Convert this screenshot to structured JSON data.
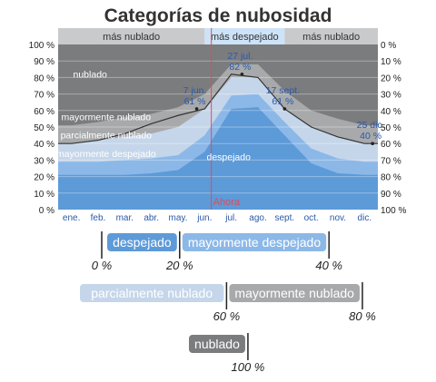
{
  "chart_data": {
    "type": "area",
    "title": "Categorías de nubosidad",
    "x_tick_labels": [
      "ene.",
      "feb.",
      "mar.",
      "abr.",
      "may.",
      "jun.",
      "jul.",
      "ago.",
      "sept.",
      "oct.",
      "nov.",
      "dic."
    ],
    "y_left_ticks": [
      "0 %",
      "10 %",
      "20 %",
      "30 %",
      "40 %",
      "50 %",
      "60 %",
      "70 %",
      "80 %",
      "90 %",
      "100 %"
    ],
    "y_right_ticks": [
      "100 %",
      "90 %",
      "80 %",
      "70 %",
      "60 %",
      "50 %",
      "40 %",
      "30 %",
      "20 %",
      "10 %",
      "0 %"
    ],
    "ylim": [
      0,
      100
    ],
    "top_bands": [
      {
        "label": "más nublado",
        "start": 0,
        "end": 5
      },
      {
        "label": "más despejado",
        "start": 5,
        "end": 8
      },
      {
        "label": "más nublado",
        "start": 8,
        "end": 11
      }
    ],
    "month_positions": [
      0,
      1,
      2,
      3,
      4,
      5,
      6,
      7,
      8,
      9,
      10,
      11
    ],
    "series": [
      {
        "name": "despejado",
        "color": "#5d9ad8",
        "values": [
          21,
          21,
          21,
          22,
          24,
          35,
          61,
          62,
          45,
          28,
          22,
          21
        ]
      },
      {
        "name": "mayormente despejado",
        "color": "#8cb8e8",
        "values": [
          29,
          29,
          30,
          31,
          33,
          45,
          69,
          70,
          53,
          37,
          31,
          29
        ]
      },
      {
        "name": "parcialmente nublado",
        "color": "#c5d6ea",
        "values": [
          40,
          42,
          44,
          46,
          50,
          61,
          80,
          80,
          61,
          50,
          44,
          40
        ]
      },
      {
        "name": "mayormente nublado",
        "color": "#a8a9ab",
        "values": [
          51,
          53,
          56,
          58,
          62,
          70,
          88,
          88,
          72,
          60,
          55,
          51
        ]
      },
      {
        "name": "nublado",
        "color": "#7b7c7e",
        "values": [
          100,
          100,
          100,
          100,
          100,
          100,
          100,
          100,
          100,
          100,
          100,
          100
        ]
      }
    ],
    "clear_percentage_line": [
      40,
      42,
      46,
      52,
      57,
      61,
      82,
      80,
      61,
      50,
      44,
      40
    ],
    "area_labels": [
      {
        "text": "nublado",
        "x": 1.2,
        "y": 80
      },
      {
        "text": "mayormente nublado",
        "x": 1.8,
        "y": 54
      },
      {
        "text": "parcialmente nublado",
        "x": 1.8,
        "y": 43
      },
      {
        "text": "mayormente despejado",
        "x": 1.8,
        "y": 32
      },
      {
        "text": "despejado",
        "x": 6.4,
        "y": 30
      }
    ],
    "annotations": [
      {
        "date": "7 jun.",
        "value": "61 %",
        "x": 5.2,
        "y": 61
      },
      {
        "date": "27 jul.",
        "value": "82 %",
        "x": 6.9,
        "y": 82
      },
      {
        "date": "17 sept.",
        "value": "61 %",
        "x": 8.5,
        "y": 61
      },
      {
        "date": "25 dic.",
        "value": "40 %",
        "x": 11.8,
        "y": 40
      }
    ],
    "now_marker": {
      "label": "Ahora",
      "x": 5.0
    },
    "legend": {
      "rows": [
        {
          "chips": [
            {
              "label": "despejado",
              "color": "#5d9ad8"
            },
            {
              "label": "mayormente despejado",
              "color": "#8cb8e8"
            }
          ],
          "ticks": [
            "0 %",
            "20 %",
            "40 %"
          ]
        },
        {
          "chips": [
            {
              "label": "parcialmente nublado",
              "color": "#c5d6ea"
            },
            {
              "label": "mayormente nublado",
              "color": "#a8a9ab"
            }
          ],
          "ticks": [
            "60 %",
            "80 %"
          ]
        },
        {
          "chips": [
            {
              "label": "nublado",
              "color": "#7b7c7e"
            }
          ],
          "ticks": [
            "100 %"
          ]
        }
      ]
    },
    "colors": {
      "band_cloudy": "#c9cacc",
      "band_clear": "#cde3f7",
      "grid": "#e6e6e6",
      "now_line": "#d94f5c",
      "annotation": "#2b5aa8"
    }
  }
}
